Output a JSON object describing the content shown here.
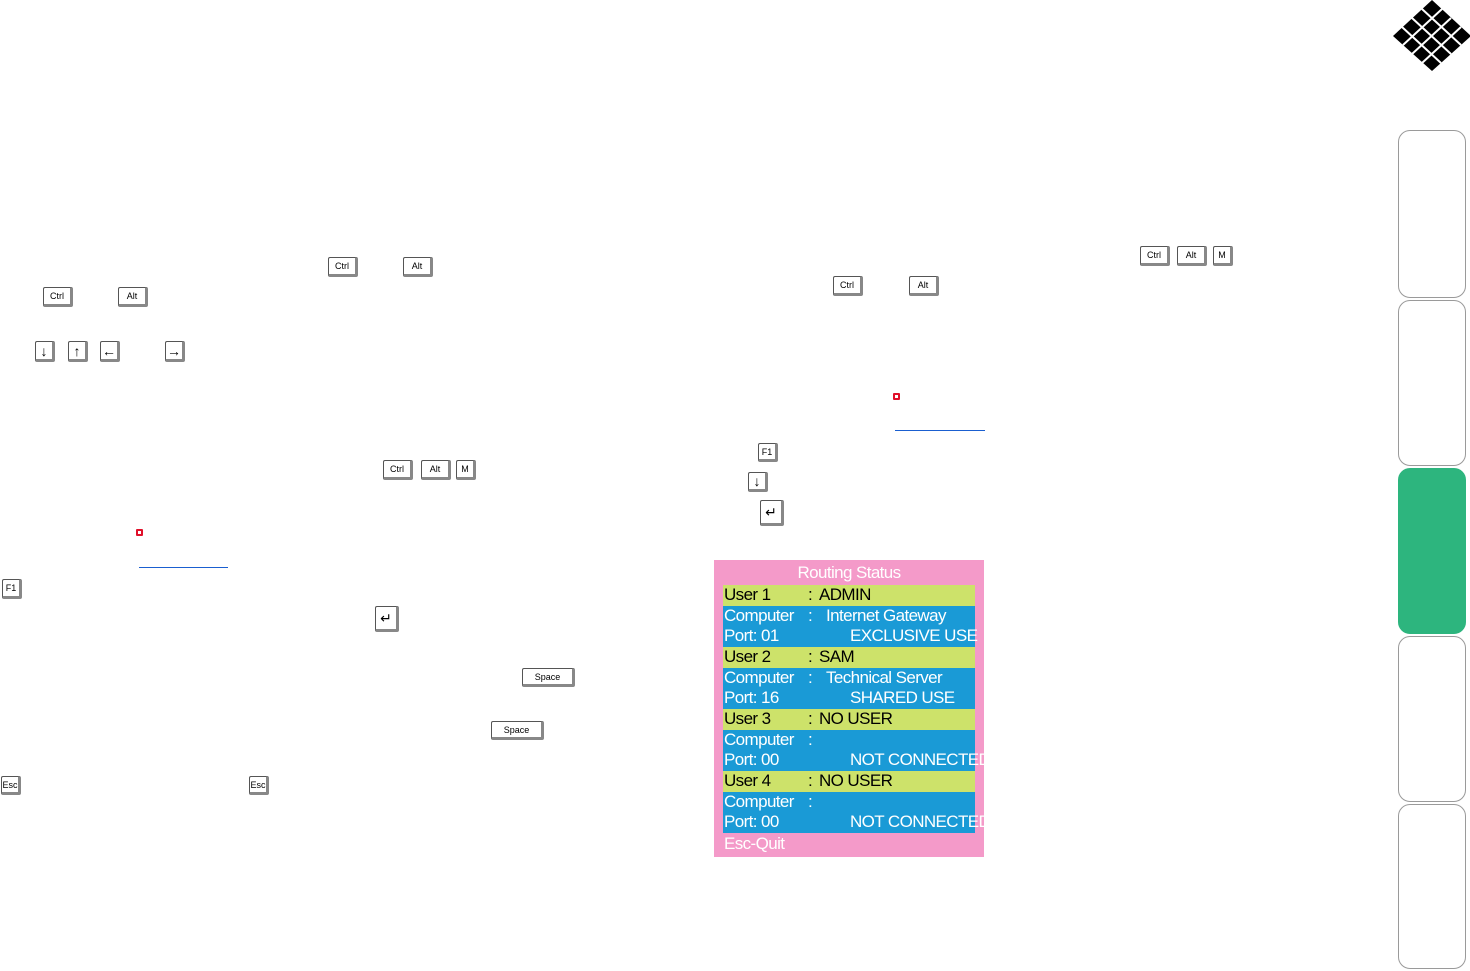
{
  "keys": [
    "Ctrl",
    "Alt",
    "Ctrl",
    "Alt",
    "↓",
    "↑",
    "←",
    "→",
    "Ctrl",
    "Alt",
    "M",
    "F1",
    "↵",
    "Space",
    "Space",
    "Esc",
    "Esc",
    "Ctrl",
    "Alt",
    "M",
    "Ctrl",
    "Alt",
    "F1",
    "↓",
    "↵"
  ],
  "routing_status": {
    "title": "Routing Status",
    "separator": ":",
    "users": [
      {
        "user": "User 1",
        "name": "ADMIN",
        "computer_label": "Computer",
        "computer": "Internet Gateway",
        "port": "Port: 01",
        "status": "EXCLUSIVE USE"
      },
      {
        "user": "User 2",
        "name": "SAM",
        "computer_label": "Computer",
        "computer": "Technical Server",
        "port": "Port: 16",
        "status": "SHARED USE"
      },
      {
        "user": "User 3",
        "name": "NO USER",
        "computer_label": "Computer",
        "computer": null,
        "port": "Port: 00",
        "status": "NOT CONNECTED"
      },
      {
        "user": "User 4",
        "name": "NO USER",
        "computer_label": "Computer",
        "computer": null,
        "port": "Port: 00",
        "status": "NOT CONNECTED"
      }
    ],
    "footer": "Esc-Quit"
  }
}
